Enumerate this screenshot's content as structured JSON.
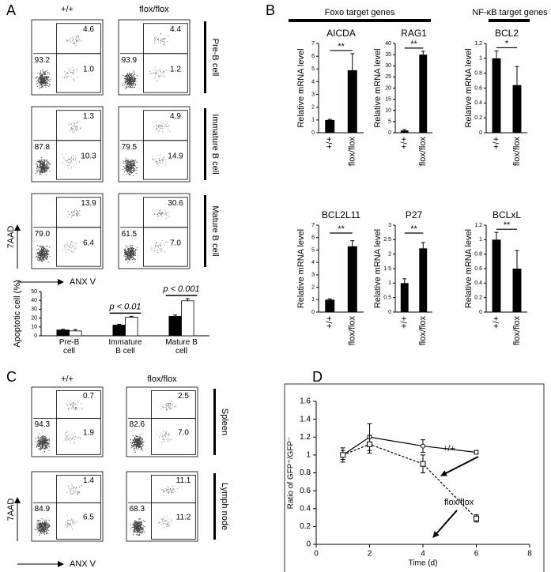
{
  "panel_labels": [
    "A",
    "B",
    "C",
    "D"
  ],
  "flow_a": {
    "columns": [
      "+/+",
      "flox/flox"
    ],
    "y_axis": "7AAD",
    "x_axis": "ANX V",
    "rows": [
      {
        "label": "Pre-B cell",
        "plots": [
          {
            "upper_right": "4.6",
            "lower_left": "93.2",
            "lower_right": "1.0"
          },
          {
            "upper_right": "4.4",
            "lower_left": "93.9",
            "lower_right": "1.2"
          }
        ]
      },
      {
        "label": "Immature B cell",
        "plots": [
          {
            "upper_right": "1.3",
            "lower_left": "87.8",
            "lower_right": "10.3"
          },
          {
            "upper_right": "4.9",
            "lower_left": "79.5",
            "lower_right": "14.9"
          }
        ]
      },
      {
        "label": "Mature B cell",
        "plots": [
          {
            "upper_right": "13.9",
            "lower_left": "79.0",
            "lower_right": "6.4"
          },
          {
            "upper_right": "30.6",
            "lower_left": "61.5",
            "lower_right": "7.0"
          }
        ]
      }
    ]
  },
  "flow_c": {
    "columns": [
      "+/+",
      "flox/flox"
    ],
    "y_axis": "7AAD",
    "x_axis": "ANX V",
    "rows": [
      {
        "label": "Spleen",
        "plots": [
          {
            "upper_right": "0.7",
            "lower_left": "94.3",
            "lower_right": "1.9"
          },
          {
            "upper_right": "2.5",
            "lower_left": "82.6",
            "lower_right": "7.0"
          }
        ]
      },
      {
        "label": "Lymph node",
        "plots": [
          {
            "upper_right": "1.4",
            "lower_left": "84.9",
            "lower_right": "6.5"
          },
          {
            "upper_right": "11.1",
            "lower_left": "68.3",
            "lower_right": "11.2"
          }
        ]
      }
    ]
  },
  "b_headers": [
    "Foxo target genes",
    "NF-κB target genes"
  ],
  "chart_data": [
    {
      "type": "bar",
      "ylabel": "Apoptotic cell (%)",
      "categories": [
        "Pre-B cell",
        "Immature B cell",
        "Mature B cell"
      ],
      "series": [
        {
          "color": "#000000",
          "values": [
            6.5,
            12,
            22
          ],
          "errors": [
            0.8,
            1,
            1.5
          ]
        },
        {
          "color": "#ffffff",
          "values": [
            5.5,
            21,
            39.5
          ],
          "errors": [
            1.5,
            1,
            2.5
          ]
        }
      ],
      "annotations": [
        "p < 0.01",
        "p < 0.001"
      ],
      "ylim": [
        0,
        50
      ],
      "yticks": [
        0,
        10,
        20,
        30,
        40,
        50
      ]
    },
    {
      "type": "bar",
      "title": "AICDA",
      "ylabel": "Relative mRNA level",
      "categories": [
        "+/+",
        "flox/flox"
      ],
      "values": [
        1,
        4.9
      ],
      "errors": [
        0.05,
        1.3
      ],
      "color": "#000000",
      "annotation": "**",
      "ylim": [
        0,
        7
      ],
      "yticks": [
        0,
        1,
        2,
        3,
        4,
        5,
        6,
        7
      ]
    },
    {
      "type": "bar",
      "title": "RAG1",
      "ylabel": "Relative mRNA level",
      "categories": [
        "+/+",
        "flox/flox"
      ],
      "values": [
        1,
        35
      ],
      "errors": [
        0.4,
        1.5
      ],
      "color": "#000000",
      "annotation": "**",
      "ylim": [
        0,
        40
      ],
      "yticks": [
        0,
        5,
        10,
        15,
        20,
        25,
        30,
        35,
        40
      ]
    },
    {
      "type": "bar",
      "title": "BCL2",
      "ylabel": "Relative mRNA level",
      "categories": [
        "+/+",
        "flox/flox"
      ],
      "values": [
        1,
        0.64
      ],
      "errors": [
        0.1,
        0.25
      ],
      "color": "#000000",
      "annotation": "*",
      "ylim": [
        0,
        1.2
      ],
      "yticks": [
        0,
        0.2,
        0.4,
        0.6,
        0.8,
        1,
        1.2
      ]
    },
    {
      "type": "bar",
      "title": "BCL2L11",
      "ylabel": "Relative mRNA level",
      "categories": [
        "+/+",
        "flox/flox"
      ],
      "values": [
        1,
        5.3
      ],
      "errors": [
        0.07,
        0.45
      ],
      "color": "#000000",
      "annotation": "**",
      "ylim": [
        0,
        7
      ],
      "yticks": [
        0,
        1,
        2,
        3,
        4,
        5,
        6,
        7
      ]
    },
    {
      "type": "bar",
      "title": "P27",
      "ylabel": "Relative mRNA level",
      "categories": [
        "+/+",
        "flox/flox"
      ],
      "values": [
        1,
        2.2
      ],
      "errors": [
        0.15,
        0.2
      ],
      "color": "#000000",
      "annotation": "**",
      "ylim": [
        0,
        3
      ],
      "yticks": [
        0,
        0.5,
        1,
        1.5,
        2,
        2.5,
        3
      ]
    },
    {
      "type": "bar",
      "title": "BCLxL",
      "ylabel": "Relative mRNA level",
      "categories": [
        "+/+",
        "flox/flox"
      ],
      "values": [
        1,
        0.6
      ],
      "errors": [
        0.1,
        0.25
      ],
      "color": "#000000",
      "annotation": "**",
      "ylim": [
        0,
        1.2
      ],
      "yticks": [
        0,
        0.2,
        0.4,
        0.6,
        0.8,
        1,
        1.2
      ]
    },
    {
      "type": "line",
      "xlabel": "Time (d)",
      "ylabel": "Ratio of GFP⁺/GFP⁻",
      "x": [
        1,
        2,
        4,
        6
      ],
      "series": [
        {
          "name": "+/+",
          "color": "#000000",
          "marker": "circle",
          "line_style": "solid",
          "values": [
            1,
            1.2,
            1.1,
            1.03
          ],
          "errors": [
            0.05,
            0.15,
            0.07,
            0.02
          ]
        },
        {
          "name": "flox/flox",
          "color": "#000000",
          "marker": "square",
          "line_style": "dashed",
          "values": [
            1,
            1.12,
            0.9,
            0.29
          ],
          "errors": [
            0.08,
            0.1,
            0.1,
            0.04
          ]
        }
      ],
      "xlim": [
        0,
        8
      ],
      "xticks": [
        0,
        2,
        4,
        6,
        8
      ],
      "ylim": [
        0,
        1.6
      ],
      "yticks": [
        0,
        0.2,
        0.4,
        0.6,
        0.8,
        1,
        1.2,
        1.4,
        1.6
      ]
    }
  ]
}
